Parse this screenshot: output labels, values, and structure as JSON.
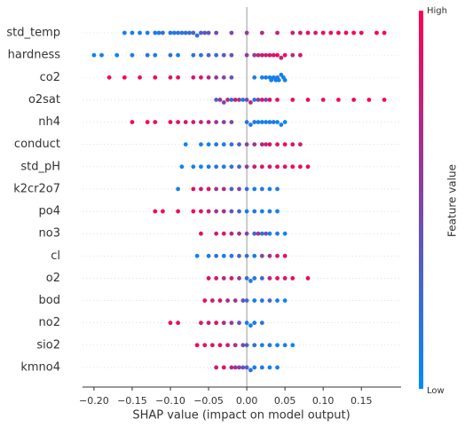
{
  "chart_data": {
    "type": "beeswarm",
    "xlabel": "SHAP value (impact on model output)",
    "colorbar_label": "Feature value",
    "colorbar_high": "High",
    "colorbar_low": "Low",
    "colors": [
      "#008bfb",
      "#ff0051"
    ],
    "xlim": [
      -0.215,
      0.202
    ],
    "xticks": [
      {
        "value": -0.2,
        "label": "−0.20"
      },
      {
        "value": -0.15,
        "label": "−0.15"
      },
      {
        "value": -0.1,
        "label": "−0.10"
      },
      {
        "value": -0.05,
        "label": "−0.05"
      },
      {
        "value": 0,
        "label": "0.00"
      },
      0.05,
      {
        "value": 0.1,
        "label": "0.10"
      },
      0.15
    ],
    "series": [
      {
        "name": "std_temp",
        "values": [
          -0.16,
          -0.15,
          -0.14,
          -0.13,
          -0.12,
          -0.115,
          -0.11,
          -0.1,
          -0.095,
          -0.09,
          -0.085,
          -0.08,
          -0.075,
          -0.07,
          -0.065,
          -0.06,
          -0.055,
          -0.05,
          -0.04,
          -0.02,
          0.0,
          0.02,
          0.04,
          0.06,
          0.07,
          0.08,
          0.09,
          0.1,
          0.11,
          0.12,
          0.13,
          0.14,
          0.15,
          0.17,
          0.18
        ],
        "feature_values": [
          0.05,
          0.1,
          0.05,
          0.1,
          0.15,
          0.1,
          0.2,
          0.1,
          0.15,
          0.2,
          0.1,
          0.25,
          0.2,
          0.3,
          0.15,
          0.3,
          0.35,
          0.4,
          0.45,
          0.5,
          0.55,
          0.7,
          0.75,
          0.8,
          0.85,
          0.9,
          0.8,
          0.95,
          0.9,
          1,
          0.95,
          1,
          0.9,
          0.95,
          1
        ]
      },
      {
        "name": "hardness",
        "values": [
          -0.2,
          -0.19,
          -0.17,
          -0.15,
          -0.13,
          -0.12,
          -0.1,
          -0.09,
          -0.07,
          -0.06,
          -0.05,
          -0.04,
          -0.03,
          -0.02,
          0.0,
          0.01,
          0.015,
          0.02,
          0.025,
          0.03,
          0.035,
          0.04,
          0.045,
          0.05,
          0.06,
          0.07
        ],
        "feature_values": [
          0.05,
          0.1,
          0.05,
          0.1,
          0.15,
          0.1,
          0.2,
          0.1,
          0.2,
          0.15,
          0.3,
          0.2,
          0.35,
          0.4,
          0.55,
          0.6,
          0.7,
          0.8,
          0.75,
          0.9,
          0.85,
          0.95,
          0.8,
          0.9,
          0.7,
          0.85
        ]
      },
      {
        "name": "co2",
        "values": [
          -0.18,
          -0.16,
          -0.14,
          -0.12,
          -0.1,
          -0.09,
          -0.07,
          -0.06,
          -0.05,
          -0.04,
          -0.03,
          -0.02,
          0.01,
          0.02,
          0.025,
          0.03,
          0.032,
          0.035,
          0.038,
          0.04,
          0.042,
          0.045,
          0.048,
          0.05
        ],
        "feature_values": [
          0.95,
          1,
          0.9,
          0.95,
          0.85,
          0.9,
          0.8,
          0.85,
          0.7,
          0.6,
          0.5,
          0.4,
          0.1,
          0.05,
          0.1,
          0.05,
          0.1,
          0.05,
          0.1,
          0.15,
          0.05,
          0.1,
          0.05,
          0.1
        ]
      },
      {
        "name": "o2sat",
        "values": [
          -0.04,
          -0.035,
          -0.03,
          -0.025,
          -0.02,
          -0.015,
          -0.01,
          -0.005,
          0.0,
          0.005,
          0.01,
          0.015,
          0.02,
          0.025,
          0.03,
          0.04,
          0.06,
          0.08,
          0.1,
          0.12,
          0.14,
          0.16,
          0.18
        ],
        "feature_values": [
          0.3,
          0.6,
          0.5,
          0.7,
          0.2,
          0.8,
          0.6,
          0.1,
          0.5,
          0.7,
          0.2,
          0.6,
          0.8,
          0.5,
          0.9,
          0.85,
          0.9,
          0.95,
          0.9,
          1,
          0.95,
          1,
          0.95
        ]
      },
      {
        "name": "nh4",
        "values": [
          -0.15,
          -0.13,
          -0.12,
          -0.1,
          -0.09,
          -0.08,
          -0.07,
          -0.06,
          -0.05,
          -0.04,
          -0.03,
          -0.02,
          0.0,
          0.005,
          0.01,
          0.015,
          0.02,
          0.025,
          0.03,
          0.035,
          0.04,
          0.045,
          0.05
        ],
        "feature_values": [
          0.95,
          1,
          0.9,
          0.95,
          0.9,
          0.85,
          0.8,
          0.7,
          0.75,
          0.6,
          0.55,
          0.5,
          0.2,
          0.1,
          0.15,
          0.05,
          0.1,
          0.05,
          0.1,
          0.15,
          0.05,
          0.1,
          0.05
        ]
      },
      {
        "name": "conduct",
        "values": [
          -0.08,
          -0.06,
          -0.05,
          -0.04,
          -0.03,
          -0.02,
          -0.01,
          0.0,
          0.01,
          0.02,
          0.025,
          0.03,
          0.04,
          0.05,
          0.06,
          0.07
        ],
        "feature_values": [
          0.05,
          0.1,
          0.05,
          0.15,
          0.1,
          0.2,
          0.3,
          0.5,
          0.6,
          0.8,
          0.7,
          0.9,
          0.85,
          0.95,
          0.9,
          0.8
        ]
      },
      {
        "name": "std_pH",
        "values": [
          -0.085,
          -0.07,
          -0.06,
          -0.05,
          -0.04,
          -0.03,
          -0.02,
          -0.01,
          0.0,
          0.01,
          0.02,
          0.03,
          0.04,
          0.05,
          0.06,
          0.07,
          0.08
        ],
        "feature_values": [
          0.05,
          0.1,
          0.05,
          0.1,
          0.15,
          0.1,
          0.2,
          0.3,
          0.5,
          0.8,
          0.9,
          0.85,
          0.95,
          0.9,
          1,
          0.95,
          0.9
        ]
      },
      {
        "name": "k2cr2o7",
        "values": [
          -0.09,
          -0.07,
          -0.06,
          -0.05,
          -0.04,
          -0.03,
          -0.02,
          -0.01,
          0.0,
          0.01,
          0.02,
          0.03,
          0.04
        ],
        "feature_values": [
          0.1,
          0.9,
          0.8,
          0.85,
          0.6,
          0.7,
          0.3,
          0.5,
          0.2,
          0.1,
          0.15,
          0.05,
          0.1
        ]
      },
      {
        "name": "po4",
        "values": [
          -0.12,
          -0.11,
          -0.09,
          -0.07,
          -0.06,
          -0.05,
          -0.04,
          -0.03,
          -0.02,
          -0.01,
          0.0,
          0.01,
          0.02,
          0.03,
          0.04
        ],
        "feature_values": [
          0.95,
          1,
          0.9,
          0.95,
          0.85,
          0.8,
          0.6,
          0.7,
          0.4,
          0.3,
          0.1,
          0.15,
          0.05,
          0.1,
          0.05
        ]
      },
      {
        "name": "no3",
        "values": [
          -0.06,
          -0.04,
          -0.03,
          -0.02,
          -0.01,
          0.0,
          0.01,
          0.015,
          0.02,
          0.025,
          0.03,
          0.04,
          0.05
        ],
        "feature_values": [
          0.9,
          0.8,
          0.85,
          0.7,
          0.6,
          0.5,
          0.3,
          0.6,
          0.2,
          0.4,
          0.1,
          0.15,
          0.05
        ]
      },
      {
        "name": "cl",
        "values": [
          -0.065,
          -0.05,
          -0.04,
          -0.03,
          -0.02,
          -0.01,
          0.0,
          0.01,
          0.02,
          0.03,
          0.04,
          0.05
        ],
        "feature_values": [
          0.05,
          0.1,
          0.2,
          0.1,
          0.15,
          0.3,
          0.2,
          0.1,
          0.5,
          0.7,
          0.8,
          0.9
        ]
      },
      {
        "name": "o2",
        "values": [
          -0.05,
          -0.04,
          -0.03,
          -0.02,
          -0.01,
          0.0,
          0.005,
          0.01,
          0.02,
          0.03,
          0.04,
          0.05,
          0.06,
          0.08
        ],
        "feature_values": [
          0.9,
          0.8,
          0.7,
          0.85,
          0.6,
          0.2,
          0.1,
          0.15,
          0.3,
          0.8,
          0.9,
          0.85,
          0.95,
          0.9
        ]
      },
      {
        "name": "bod",
        "values": [
          -0.055,
          -0.045,
          -0.035,
          -0.025,
          -0.015,
          -0.005,
          0.0,
          0.01,
          0.02,
          0.03,
          0.04,
          0.05
        ],
        "feature_values": [
          0.9,
          0.8,
          0.85,
          0.7,
          0.6,
          0.4,
          0.2,
          0.1,
          0.15,
          0.3,
          0.1,
          0.05
        ]
      },
      {
        "name": "no2",
        "values": [
          -0.1,
          -0.09,
          -0.06,
          -0.05,
          -0.04,
          -0.03,
          -0.02,
          -0.01,
          0.0,
          0.005,
          0.01,
          0.02
        ],
        "feature_values": [
          0.95,
          0.9,
          0.85,
          0.8,
          0.9,
          0.7,
          0.6,
          0.4,
          0.1,
          0.05,
          0.1,
          0.15
        ]
      },
      {
        "name": "sio2",
        "values": [
          -0.065,
          -0.055,
          -0.045,
          -0.035,
          -0.025,
          -0.015,
          -0.005,
          0.0,
          0.01,
          0.02,
          0.03,
          0.04,
          0.05,
          0.06
        ],
        "feature_values": [
          0.95,
          0.9,
          0.85,
          0.9,
          0.8,
          0.7,
          0.5,
          0.3,
          0.2,
          0.1,
          0.15,
          0.05,
          0.1,
          0.05
        ]
      },
      {
        "name": "kmno4",
        "values": [
          -0.04,
          -0.03,
          -0.02,
          -0.015,
          -0.01,
          -0.005,
          0.0,
          0.005,
          0.01,
          0.02,
          0.03,
          0.04
        ],
        "feature_values": [
          0.8,
          0.9,
          0.7,
          0.6,
          0.5,
          0.4,
          0.3,
          0.2,
          0.1,
          0.15,
          0.05,
          0.1
        ]
      }
    ]
  }
}
